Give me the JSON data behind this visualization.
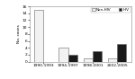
{
  "categories": [
    "1990-1993",
    "1994-1997",
    "1998-2001",
    "2002-2005"
  ],
  "non_hiv": [
    15,
    4,
    1,
    1
  ],
  "hiv": [
    0,
    2,
    3,
    5
  ],
  "bar_color_non_hiv": "#f2f2f2",
  "bar_color_hiv": "#1a1a1a",
  "bar_edgecolor": "#666666",
  "ylabel": "No. cases",
  "ylim": [
    0,
    16
  ],
  "yticks": [
    0,
    2,
    4,
    6,
    8,
    10,
    12,
    14,
    16
  ],
  "legend_labels": [
    "Non-HIV",
    "HIV"
  ],
  "background_color": "#ffffff",
  "bar_width": 0.38
}
